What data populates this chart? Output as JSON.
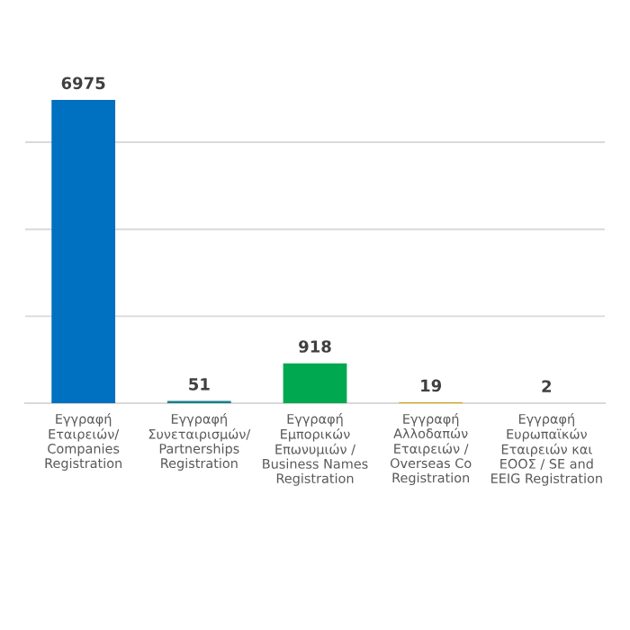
{
  "chart_data": {
    "type": "bar",
    "categories": [
      "Εγγραφή\nΕταιρειών/\nCompanies\nRegistration",
      "Εγγραφή\nΣυνεταιρισμών/\nPartnerships\nRegistration",
      "Εγγραφή\nΕμπορικών\nΕπωνυμιών /\nBusiness Names\nRegistration",
      "Εγγραφή\nΑλλοδαπών\nΕταιρειών /\nOverseas Co\nRegistration",
      "Εγγραφή\nΕυρωπαϊκών\nΕταιρειών και\nΕΟΟΣ / SE and\nEEIG Registration"
    ],
    "values": [
      6975,
      51,
      918,
      19,
      2
    ],
    "colors": [
      "#0070c0",
      "#17808c",
      "#00a84f",
      "#d4a000",
      "#17808c"
    ],
    "data_labels": true,
    "grid": "y",
    "tick_labels": "x"
  }
}
